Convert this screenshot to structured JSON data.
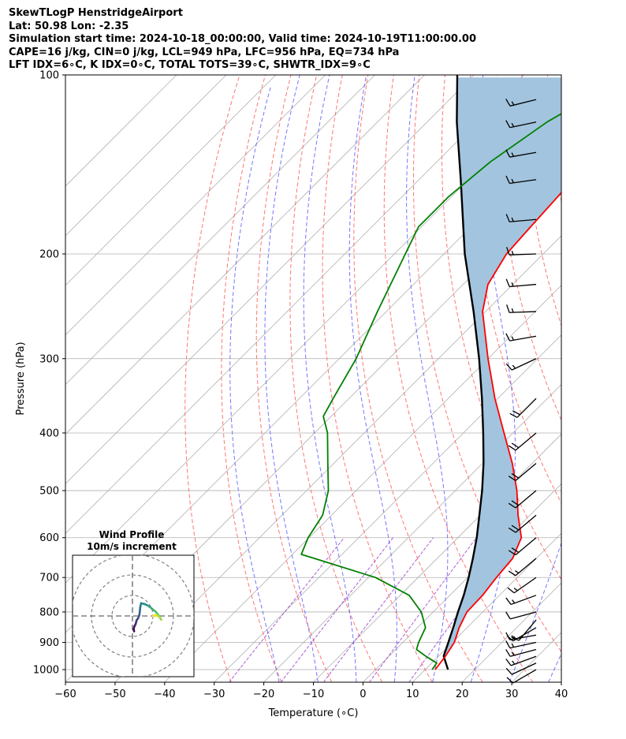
{
  "header": {
    "line1": "SkewTLogP HenstridgeAirport",
    "line2": "Lat: 50.98   Lon: -2.35",
    "line3": "Simulation start time: 2024-10-18_00:00:00, Valid time: 2024-10-19T11:00:00.00",
    "line4": "CAPE=16 j/kg, CIN=0 j/kg, LCL=949 hPa, LFC=956 hPa, EQ=734 hPa",
    "line5": "LFT IDX=6∘C, K IDX=0∘C, TOTAL TOTS=39∘C, SHWTR_IDX=9∘C"
  },
  "colors": {
    "temperature": "#ff0000",
    "dewpoint": "#008000",
    "parcel": "#000000",
    "cape_fill": "#a2c4de",
    "dry_adiabat": "#ff6666",
    "moist_adiabat": "#6666ff",
    "mixing_ratio": "#9933cc",
    "isotherm": "#b0b0b0"
  },
  "chart_data": [
    {
      "type": "line",
      "name": "skew-t",
      "xlabel": "Temperature (∘C)",
      "ylabel": "Pressure (hPa)",
      "xlim": [
        -60,
        40
      ],
      "ylim": [
        1050,
        100
      ],
      "y_scale": "log",
      "skew": "45",
      "grid": true,
      "x_ticks": [
        "−60",
        "−50",
        "−40",
        "−30",
        "−20",
        "−10",
        "0",
        "10",
        "20",
        "30",
        "40"
      ],
      "y_ticks": [
        "100",
        "200",
        "300",
        "400",
        "500",
        "600",
        "700",
        "800",
        "900",
        "1000"
      ],
      "series": [
        {
          "key": "temperature",
          "points": [
            {
              "p": 1000,
              "t": 12.0
            },
            {
              "p": 950,
              "t": 11.4
            },
            {
              "p": 900,
              "t": 10.4
            },
            {
              "p": 850,
              "t": 8.4
            },
            {
              "p": 800,
              "t": 6.8
            },
            {
              "p": 750,
              "t": 6.6
            },
            {
              "p": 700,
              "t": 5.8
            },
            {
              "p": 650,
              "t": 5.2
            },
            {
              "p": 600,
              "t": 2.8
            },
            {
              "p": 550,
              "t": -2.4
            },
            {
              "p": 500,
              "t": -7.6
            },
            {
              "p": 450,
              "t": -14.0
            },
            {
              "p": 400,
              "t": -21.8
            },
            {
              "p": 350,
              "t": -30.6
            },
            {
              "p": 300,
              "t": -40.0
            },
            {
              "p": 250,
              "t": -50.6
            },
            {
              "p": 225,
              "t": -55.0
            },
            {
              "p": 200,
              "t": -57.4
            },
            {
              "p": 180,
              "t": -58.0
            },
            {
              "p": 160,
              "t": -58.6
            },
            {
              "p": 140,
              "t": -59.4
            },
            {
              "p": 120,
              "t": -60.4
            },
            {
              "p": 110,
              "t": -60.8
            },
            {
              "p": 100,
              "t": -61.2
            }
          ]
        },
        {
          "key": "dewpoint",
          "points": [
            {
              "p": 1000,
              "t": 11.4
            },
            {
              "p": 975,
              "t": 11.0
            },
            {
              "p": 950,
              "t": 7.5
            },
            {
              "p": 925,
              "t": 4.2
            },
            {
              "p": 900,
              "t": 3.2
            },
            {
              "p": 850,
              "t": 1.6
            },
            {
              "p": 800,
              "t": -2.4
            },
            {
              "p": 750,
              "t": -8.2
            },
            {
              "p": 700,
              "t": -18.6
            },
            {
              "p": 640,
              "t": -38.2
            },
            {
              "p": 600,
              "t": -40.2
            },
            {
              "p": 550,
              "t": -41.8
            },
            {
              "p": 500,
              "t": -45.6
            },
            {
              "p": 450,
              "t": -51.2
            },
            {
              "p": 400,
              "t": -57.4
            },
            {
              "p": 375,
              "t": -61.6
            },
            {
              "p": 350,
              "t": -63.2
            },
            {
              "p": 300,
              "t": -66.6
            },
            {
              "p": 250,
              "t": -71.8
            },
            {
              "p": 200,
              "t": -77.8
            },
            {
              "p": 180,
              "t": -80.6
            },
            {
              "p": 160,
              "t": -80.6
            },
            {
              "p": 140,
              "t": -79.2
            },
            {
              "p": 120,
              "t": -75.8
            },
            {
              "p": 100,
              "t": -69.0
            }
          ]
        },
        {
          "key": "parcel",
          "points": [
            {
              "p": 1000,
              "t": 14.6
            },
            {
              "p": 949,
              "t": 11.0
            },
            {
              "p": 900,
              "t": 9.2
            },
            {
              "p": 850,
              "t": 7.2
            },
            {
              "p": 800,
              "t": 5.0
            },
            {
              "p": 750,
              "t": 2.8
            },
            {
              "p": 700,
              "t": 0.2
            },
            {
              "p": 650,
              "t": -2.8
            },
            {
              "p": 600,
              "t": -6.2
            },
            {
              "p": 550,
              "t": -10.2
            },
            {
              "p": 500,
              "t": -14.6
            },
            {
              "p": 450,
              "t": -19.8
            },
            {
              "p": 400,
              "t": -26.0
            },
            {
              "p": 350,
              "t": -33.2
            },
            {
              "p": 300,
              "t": -41.8
            },
            {
              "p": 250,
              "t": -52.4
            },
            {
              "p": 200,
              "t": -65.8
            },
            {
              "p": 150,
              "t": -81.6
            },
            {
              "p": 120,
              "t": -94.0
            },
            {
              "p": 100,
              "t": -103.4
            }
          ]
        }
      ],
      "cape_region": {
        "from_hpa": 956,
        "to_hpa": 100
      }
    },
    {
      "type": "scatter",
      "name": "wind-profile-hodograph",
      "title": "Wind Profile",
      "subtitle": "10m/s increment",
      "rings_ms": [
        10,
        20,
        30
      ],
      "colormap": "viridis",
      "points_ms": [
        {
          "u": 0.8,
          "v": -7.5
        },
        {
          "u": 0.6,
          "v": -6.2
        },
        {
          "u": 1.0,
          "v": -5.0
        },
        {
          "u": 1.6,
          "v": -3.8
        },
        {
          "u": 2.0,
          "v": -2.2
        },
        {
          "u": 2.8,
          "v": -1.0
        },
        {
          "u": 3.4,
          "v": 0.6
        },
        {
          "u": 3.6,
          "v": 2.4
        },
        {
          "u": 3.8,
          "v": 4.2
        },
        {
          "u": 4.2,
          "v": 6.2
        },
        {
          "u": 6.0,
          "v": 5.8
        },
        {
          "u": 7.6,
          "v": 5.0
        },
        {
          "u": 9.0,
          "v": 4.0
        },
        {
          "u": 10.2,
          "v": 3.0
        },
        {
          "u": 11.4,
          "v": 2.0
        },
        {
          "u": 12.4,
          "v": 0.8
        },
        {
          "u": 13.4,
          "v": -0.6
        },
        {
          "u": 14.0,
          "v": -1.8
        },
        {
          "u": 13.2,
          "v": -0.6
        },
        {
          "u": 12.0,
          "v": 0.2
        },
        {
          "u": 11.0,
          "v": 0.4
        },
        {
          "u": 10.0,
          "v": 0.0
        }
      ]
    },
    {
      "type": "scatter",
      "name": "wind-barbs",
      "units": "knots",
      "barbs": [
        {
          "p": 1000,
          "dir": 240,
          "spd": 10
        },
        {
          "p": 975,
          "dir": 245,
          "spd": 10
        },
        {
          "p": 950,
          "dir": 250,
          "spd": 15
        },
        {
          "p": 925,
          "dir": 255,
          "spd": 15
        },
        {
          "p": 900,
          "dir": 258,
          "spd": 15
        },
        {
          "p": 875,
          "dir": 260,
          "spd": 15
        },
        {
          "p": 850,
          "dir": 240,
          "spd": 15
        },
        {
          "p": 825,
          "dir": 220,
          "spd": 10
        },
        {
          "p": 800,
          "dir": 255,
          "spd": 10
        },
        {
          "p": 750,
          "dir": 250,
          "spd": 15
        },
        {
          "p": 700,
          "dir": 235,
          "spd": 15
        },
        {
          "p": 650,
          "dir": 230,
          "spd": 15
        },
        {
          "p": 600,
          "dir": 230,
          "spd": 20
        },
        {
          "p": 550,
          "dir": 230,
          "spd": 20
        },
        {
          "p": 500,
          "dir": 230,
          "spd": 20
        },
        {
          "p": 450,
          "dir": 230,
          "spd": 20
        },
        {
          "p": 400,
          "dir": 230,
          "spd": 20
        },
        {
          "p": 350,
          "dir": 225,
          "spd": 20
        },
        {
          "p": 300,
          "dir": 245,
          "spd": 15
        },
        {
          "p": 275,
          "dir": 260,
          "spd": 15
        },
        {
          "p": 250,
          "dir": 268,
          "spd": 15
        },
        {
          "p": 225,
          "dir": 265,
          "spd": 15
        },
        {
          "p": 200,
          "dir": 268,
          "spd": 15
        },
        {
          "p": 175,
          "dir": 265,
          "spd": 15
        },
        {
          "p": 150,
          "dir": 262,
          "spd": 15
        },
        {
          "p": 135,
          "dir": 260,
          "spd": 15
        },
        {
          "p": 120,
          "dir": 258,
          "spd": 15
        },
        {
          "p": 110,
          "dir": 256,
          "spd": 15
        }
      ]
    }
  ]
}
